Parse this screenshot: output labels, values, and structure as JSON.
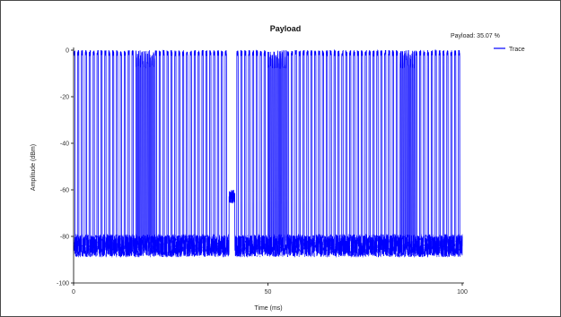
{
  "chart_data": {
    "type": "line",
    "title": "Payload",
    "annotation": "Payload: 35.07 %",
    "xlabel": "Time (ms)",
    "ylabel": "Amplitude (dBm)",
    "xlim": [
      0,
      100
    ],
    "ylim": [
      -100,
      0
    ],
    "xticks": [
      0,
      50,
      100
    ],
    "yticks": [
      0,
      -20,
      -40,
      -60,
      -80,
      -100
    ],
    "grid": false,
    "legend_position": "top-right",
    "series": [
      {
        "name": "Trace",
        "color": "#0000ff",
        "pulse_on_level_dbm": 0,
        "noise_floor_dbm": -84,
        "pulse_period_ms": 1.0,
        "pulse_on_fraction": 0.35,
        "dense_regions_ms": [
          [
            16,
            21
          ],
          [
            50,
            55
          ],
          [
            84,
            88
          ]
        ],
        "gap_region_ms": [
          40,
          41.5
        ],
        "gap_level_dbm": -63
      }
    ]
  }
}
